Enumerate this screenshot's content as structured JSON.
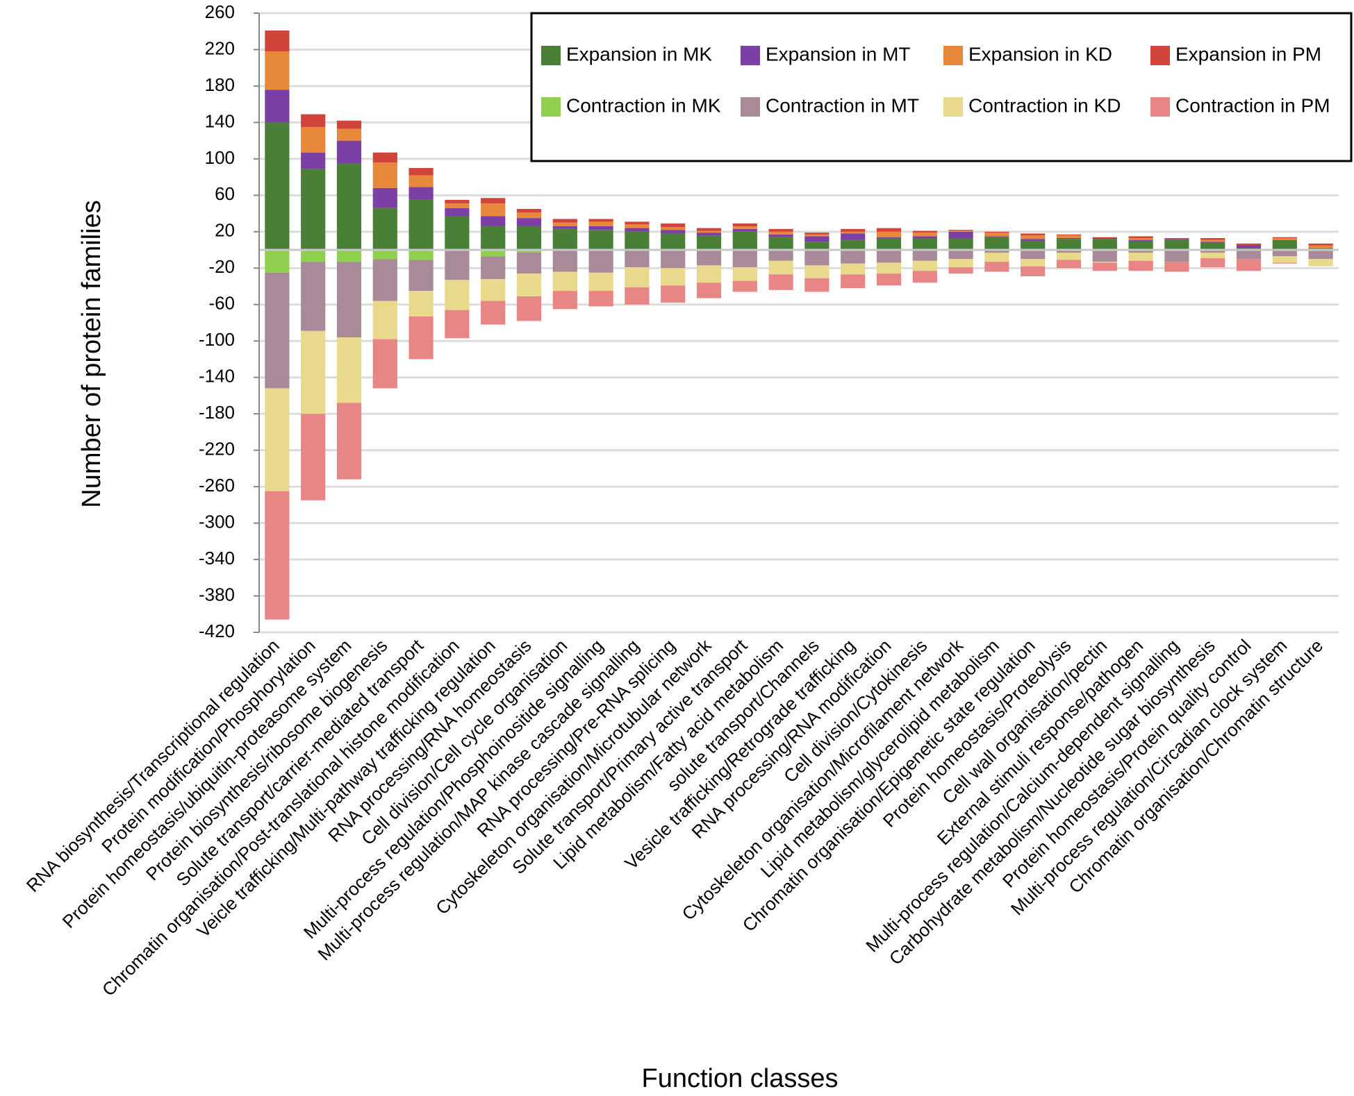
{
  "chart_data": {
    "type": "stacked_bar",
    "ylabel": "Number of protein families",
    "xlabel": "Function classes",
    "categories": [
      "RNA biosynthesis/Transcriptional regulation",
      "Protein modification/Phosphorylation",
      "Protein homeostasis/ubiquitin-proteasome system",
      "Protein biosynthesis/ribosome biogenesis",
      "Solute transport/carrier-mediated transport",
      "Chromatin organisation/Post-translational histone modification",
      "Veicle trafficking/Multi-pathway trafficking regulation",
      "RNA processing/RNA homeostasis",
      "Cell division/Cell cycle organisation",
      "Multi-process regulation/Phosphoinositide signalling",
      "Multi-process regulation/MAP kinase cascade signalling",
      "RNA processing/Pre-RNA splicing",
      "Cytoskeleton organisation/Microtubular network",
      "Solute transport/Primary active transport",
      "Lipid metabolism/Fatty acid metabolism",
      "solute transport/Channels",
      "Vesicle trafficking/Retrograde trafficking",
      "RNA processing/RNA modification",
      "Cell division/Cytokinesis",
      "Cytoskeleton organisation/Microfilament network",
      "Lipid metabolism/glycerolipid metabolism",
      "Chromatin organisation/Epigenetic state regulation",
      "Protein homeostasis/Proteolysis",
      "Cell wall organisation/pectin",
      "External stimuli response/pathogen",
      "Multi-process regulation/Calcium-dependent signalling",
      "Carbohydrate metabolism/Nucleotide sugar biosynthesis",
      "Protein homeostasis/Protein quality control",
      "Multi-process regulation/Circadian clock system",
      "Chromatin organisation/Chromatin structure"
    ],
    "series": [
      {
        "name": "Expansion in MK",
        "color": "#4a7f37",
        "values": [
          140,
          89,
          95,
          46,
          55,
          37,
          26,
          26,
          23,
          22,
          20,
          18,
          16,
          20,
          14,
          9,
          11,
          13,
          13,
          13,
          14,
          10,
          12,
          12,
          10,
          11,
          8,
          2,
          11,
          2
        ]
      },
      {
        "name": "Expansion in MT",
        "color": "#7b3fa6",
        "values": [
          36,
          18,
          25,
          22,
          14,
          9,
          11,
          9,
          3,
          4,
          4,
          4,
          3,
          3,
          3,
          6,
          7,
          1,
          2,
          7,
          1,
          2,
          1,
          1,
          1,
          1,
          1,
          3,
          0,
          0
        ]
      },
      {
        "name": "Expansion in KD",
        "color": "#e8883a",
        "values": [
          42,
          28,
          13,
          28,
          13,
          5,
          14,
          6,
          4,
          5,
          4,
          3,
          2,
          3,
          3,
          2,
          2,
          6,
          4,
          1,
          4,
          4,
          3,
          0,
          2,
          0,
          2,
          0,
          2,
          3
        ]
      },
      {
        "name": "Expansion in PM",
        "color": "#d0443a",
        "values": [
          23,
          14,
          9,
          11,
          8,
          4,
          6,
          4,
          4,
          3,
          3,
          4,
          3,
          3,
          3,
          2,
          3,
          4,
          2,
          1,
          1,
          2,
          1,
          1,
          2,
          1,
          2,
          2,
          1,
          2
        ]
      },
      {
        "name": "Contraction in MK",
        "color": "#8fd14f",
        "values": [
          -25,
          -13,
          -13,
          -10,
          -11,
          0,
          -7,
          -3,
          0,
          0,
          0,
          0,
          0,
          0,
          0,
          0,
          0,
          0,
          0,
          0,
          0,
          0,
          0,
          0,
          0,
          0,
          0,
          0,
          0,
          0
        ]
      },
      {
        "name": "Contraction in MT",
        "color": "#a88a99",
        "values": [
          -127,
          -76,
          -83,
          -46,
          -34,
          -33,
          -25,
          -23,
          -24,
          -25,
          -19,
          -20,
          -17,
          -19,
          -12,
          -17,
          -15,
          -14,
          -12,
          -10,
          -3,
          -10,
          -3,
          -13,
          -3,
          -13,
          -3,
          -10,
          -7,
          -10
        ]
      },
      {
        "name": "Contraction in KD",
        "color": "#e9d98c",
        "values": [
          -113,
          -91,
          -72,
          -42,
          -28,
          -33,
          -24,
          -25,
          -21,
          -20,
          -22,
          -19,
          -19,
          -15,
          -15,
          -14,
          -12,
          -12,
          -11,
          -9,
          -10,
          -8,
          -8,
          -1,
          -9,
          0,
          -6,
          0,
          -7,
          -8
        ]
      },
      {
        "name": "Contraction in PM",
        "color": "#e88585",
        "values": [
          -141,
          -95,
          -84,
          -54,
          -47,
          -31,
          -26,
          -27,
          -20,
          -17,
          -19,
          -19,
          -17,
          -12,
          -17,
          -15,
          -15,
          -13,
          -13,
          -7,
          -11,
          -11,
          -9,
          -9,
          -11,
          -11,
          -10,
          -13,
          -1,
          0
        ]
      }
    ],
    "ylim": [
      -420,
      260
    ],
    "yticks": [
      260,
      220,
      180,
      140,
      100,
      60,
      20,
      -20,
      -60,
      -100,
      -140,
      -180,
      -220,
      -260,
      -300,
      -340,
      -380,
      -420
    ],
    "grid": true
  }
}
